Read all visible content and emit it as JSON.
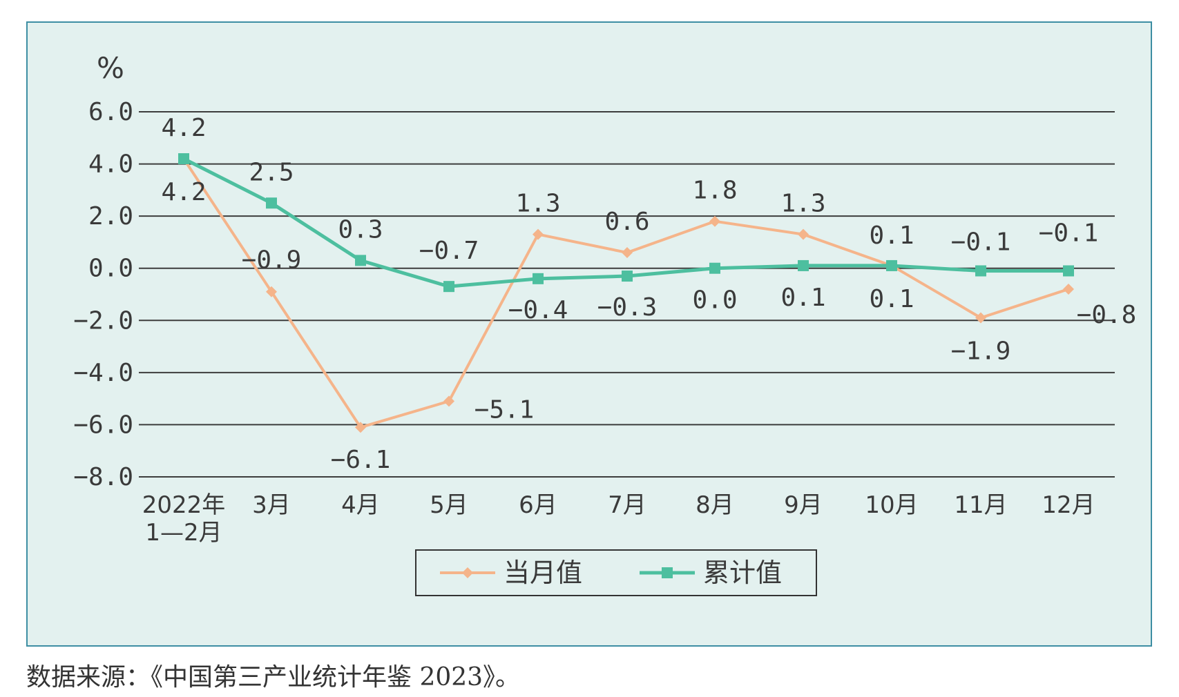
{
  "chart_data": {
    "type": "line",
    "unit_label": "%",
    "ylim": [
      -8.0,
      6.0
    ],
    "y_ticks": [
      "6.0",
      "4.0",
      "2.0",
      "0.0",
      "−2.0",
      "−4.0",
      "−6.0",
      "−8.0"
    ],
    "y_tick_values": [
      6,
      4,
      2,
      0,
      -2,
      -4,
      -6,
      -8
    ],
    "categories": [
      [
        "2022年",
        "1—2月"
      ],
      [
        "3月"
      ],
      [
        "4月"
      ],
      [
        "5月"
      ],
      [
        "6月"
      ],
      [
        "7月"
      ],
      [
        "8月"
      ],
      [
        "9月"
      ],
      [
        "10月"
      ],
      [
        "11月"
      ],
      [
        "12月"
      ]
    ],
    "grid": true,
    "legend_position": "bottom-center",
    "series": [
      {
        "name": "当月值",
        "color": "#f5b48a",
        "marker": "diamond",
        "values": [
          4.2,
          -0.9,
          -6.1,
          -5.1,
          1.3,
          0.6,
          1.8,
          1.3,
          0.1,
          -1.9,
          -0.8
        ],
        "labels": [
          "4.2",
          "−0.9",
          "−6.1",
          "−5.1",
          "1.3",
          "0.6",
          "1.8",
          "1.3",
          "0.1",
          "−1.9",
          "−0.8"
        ]
      },
      {
        "name": "累计值",
        "color": "#4dbf9f",
        "marker": "square",
        "values": [
          4.2,
          2.5,
          0.3,
          -0.7,
          -0.4,
          -0.3,
          0.0,
          0.1,
          0.1,
          -0.1,
          -0.1
        ],
        "labels": [
          "4.2",
          "2.5",
          "0.3",
          "−0.7",
          "−0.4",
          "−0.3",
          "0.0",
          "0.1",
          "0.1",
          "−0.1",
          "−0.1"
        ]
      }
    ]
  },
  "source_note": "数据来源：《中国第三产业统计年鉴 2023》。"
}
